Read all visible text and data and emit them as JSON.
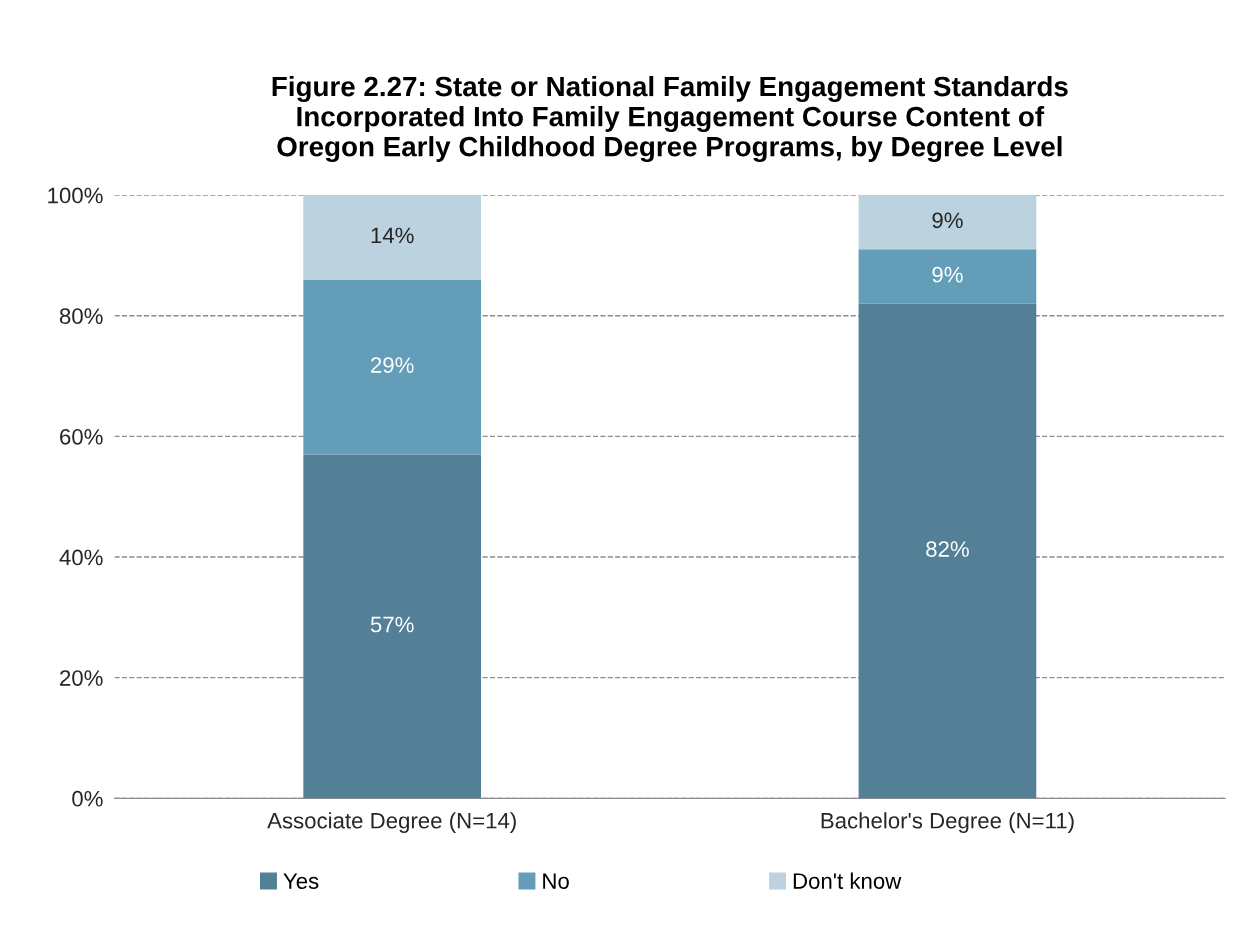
{
  "chart_data": {
    "type": "bar",
    "stacked": true,
    "title": "Figure 2.27: State or National Family Engagement Standards\nIncorporated Into Family Engagement Course Content of\nOregon Early Childhood Degree Programs, by Degree Level",
    "categories": [
      "Associate Degree (N=14)",
      "Bachelor's Degree (N=11)"
    ],
    "series": [
      {
        "name": "Yes",
        "color": "#537f97",
        "values": [
          57,
          82
        ],
        "value_labels": [
          "57%",
          "82%"
        ]
      },
      {
        "name": "No",
        "color": "#649db8",
        "values": [
          29,
          9
        ],
        "value_labels": [
          "29%",
          "9%"
        ]
      },
      {
        "name": "Don't know",
        "color": "#bcd3df",
        "values": [
          14,
          9
        ],
        "value_labels": [
          "14%",
          "9%"
        ]
      }
    ],
    "ylim": [
      0,
      100
    ],
    "yticks": [
      {
        "value": 0,
        "label": "0%"
      },
      {
        "value": 20,
        "label": "20%"
      },
      {
        "value": 40,
        "label": "40%"
      },
      {
        "value": 60,
        "label": "60%"
      },
      {
        "value": 80,
        "label": "80%"
      },
      {
        "value": 100,
        "label": "100%"
      }
    ],
    "grid": "y",
    "legend": "bottom"
  }
}
